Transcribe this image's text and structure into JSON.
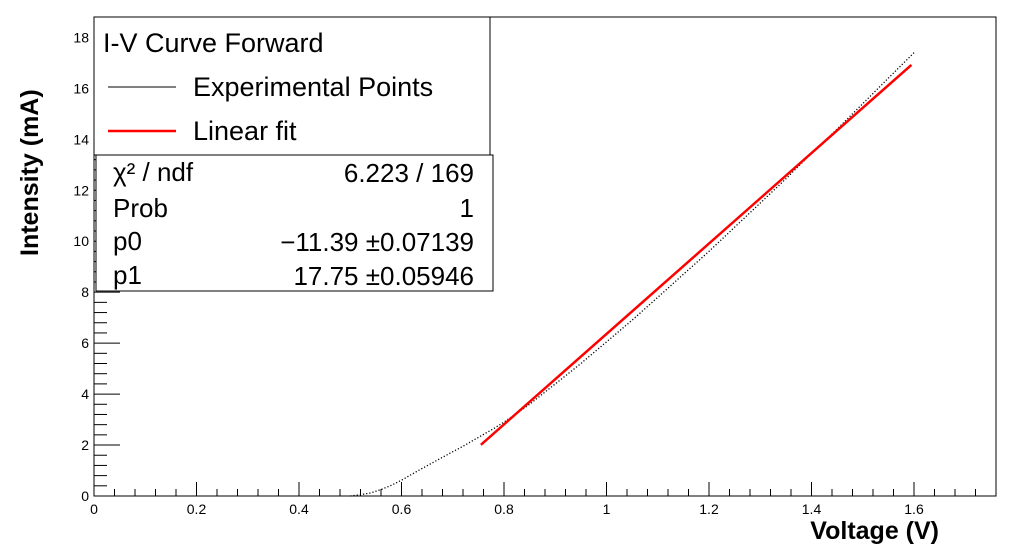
{
  "chart_data": {
    "type": "line",
    "xlabel": "Voltage (V)",
    "ylabel": "Intensity (mA)",
    "xlim": [
      0,
      1.76
    ],
    "ylim": [
      0,
      18.8
    ],
    "x_ticks": [
      "0",
      "0.2",
      "0.4",
      "0.6",
      "0.8",
      "1",
      "1.2",
      "1.4",
      "1.6"
    ],
    "y_ticks": [
      "0",
      "2",
      "4",
      "6",
      "8",
      "10",
      "12",
      "14",
      "16",
      "18"
    ],
    "legend": {
      "title": "I-V Curve Forward",
      "entries": [
        "Experimental Points",
        "Linear fit"
      ],
      "placement": "top-left"
    },
    "series": [
      {
        "name": "Experimental Points",
        "style": "dotted",
        "color": "#000000",
        "x": [
          0.5,
          0.52,
          0.54,
          0.56,
          0.58,
          0.6,
          0.62,
          0.64,
          0.66,
          0.68,
          0.7,
          0.72,
          0.75,
          0.78,
          0.8,
          0.85,
          0.9,
          0.95,
          1.0,
          1.05,
          1.1,
          1.15,
          1.2,
          1.25,
          1.3,
          1.35,
          1.4,
          1.45,
          1.5,
          1.55,
          1.6
        ],
        "y": [
          0.0,
          0.05,
          0.12,
          0.25,
          0.42,
          0.62,
          0.85,
          1.08,
          1.3,
          1.52,
          1.74,
          1.95,
          2.3,
          2.65,
          2.9,
          3.6,
          4.4,
          5.2,
          6.05,
          6.9,
          7.8,
          8.7,
          9.6,
          10.55,
          11.5,
          12.45,
          13.45,
          14.4,
          15.4,
          16.4,
          17.4
        ]
      },
      {
        "name": "Linear fit",
        "style": "solid",
        "color": "#ff0000",
        "x": [
          0.755,
          1.595
        ],
        "y": [
          2.01,
          16.92
        ]
      }
    ],
    "stats": [
      {
        "label": "χ² / ndf",
        "value": "6.223 / 169"
      },
      {
        "label": "Prob",
        "value": "1"
      },
      {
        "label": "p0",
        "value": "−11.39 ±0.07139"
      },
      {
        "label": "p1",
        "value": "17.75 ±0.05946"
      }
    ]
  }
}
